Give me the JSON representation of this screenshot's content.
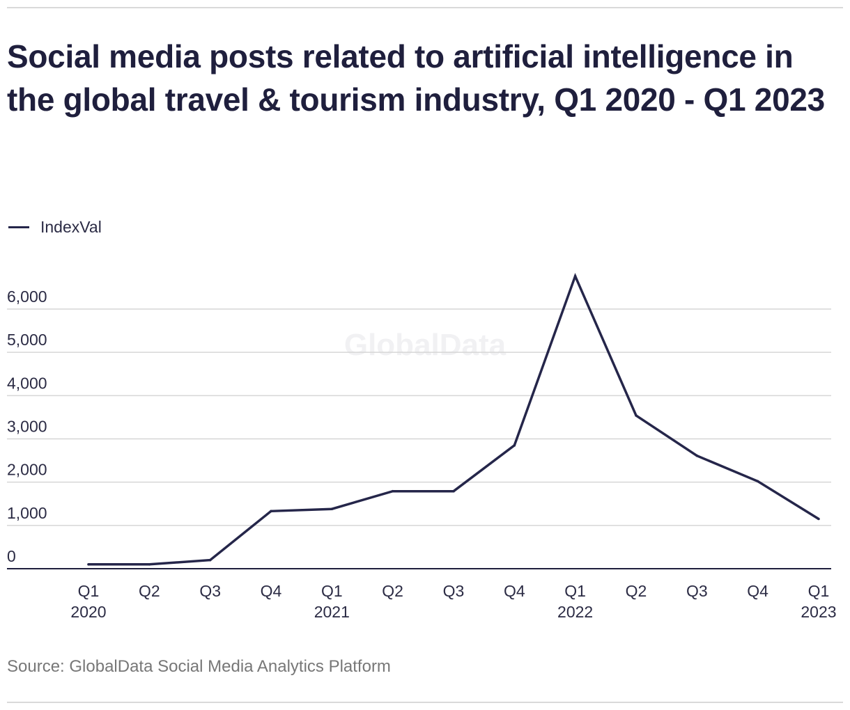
{
  "chart_data": {
    "type": "line",
    "title": "Social media posts related to artificial intelligence in the global travel & tourism industry, Q1 2020 - Q1 2023",
    "categories": [
      [
        "Q1",
        "2020"
      ],
      [
        "Q2",
        ""
      ],
      [
        "Q3",
        ""
      ],
      [
        "Q4",
        ""
      ],
      [
        "Q1",
        "2021"
      ],
      [
        "Q2",
        ""
      ],
      [
        "Q3",
        ""
      ],
      [
        "Q4",
        ""
      ],
      [
        "Q1",
        "2022"
      ],
      [
        "Q2",
        ""
      ],
      [
        "Q3",
        ""
      ],
      [
        "Q4",
        ""
      ],
      [
        "Q1",
        "2023"
      ]
    ],
    "series": [
      {
        "name": "IndexVal",
        "color": "#25264a",
        "values": [
          100,
          100,
          200,
          1330,
          1380,
          1790,
          1790,
          2850,
          6760,
          3540,
          2610,
          2020,
          1150
        ]
      }
    ],
    "yticks": [
      0,
      1000,
      2000,
      3000,
      4000,
      5000,
      6000
    ],
    "ytick_labels": [
      "0",
      "1,000",
      "2,000",
      "3,000",
      "4,000",
      "5,000",
      "6,000"
    ],
    "ylim": [
      0,
      6800
    ],
    "xlabel": "",
    "ylabel": "",
    "grid": true,
    "legend_position": "top-left",
    "watermark": "GlobalData"
  },
  "source": "Source: GlobalData Social Media Analytics Platform"
}
